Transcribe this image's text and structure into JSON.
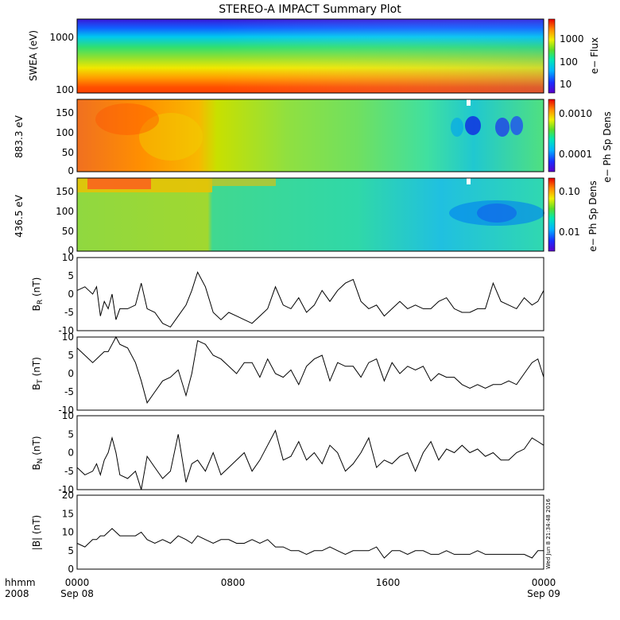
{
  "title": "STEREO-A IMPACT Summary Plot",
  "stamp": "Wed Jun  8 21:34:48 2016",
  "time_axis": {
    "row1_labels": [
      "hhmm",
      "0000",
      "0800",
      "1600",
      "0000"
    ],
    "row2_labels": [
      "2008",
      "Sep 08",
      "",
      "",
      "Sep 09"
    ]
  },
  "chart_data": [
    {
      "type": "heatmap",
      "ylabel": "SWEA (eV)",
      "yscale": "log",
      "ylim": [
        100,
        2000
      ],
      "yticks": [
        "1000",
        "100"
      ],
      "colorbar": {
        "label": "e− Flux",
        "scale": "log",
        "ticks": [
          "1000",
          "100",
          "10"
        ]
      }
    },
    {
      "type": "heatmap",
      "ylabel": "883.3 eV",
      "ylim": [
        0,
        180
      ],
      "yticks": [
        "150",
        "100",
        "50",
        "0"
      ],
      "colorbar": {
        "label": "e− Ph Sp Dens",
        "scale": "log",
        "ticks": [
          "0.0010",
          "0.0001"
        ]
      }
    },
    {
      "type": "heatmap",
      "ylabel": "436.5 eV",
      "ylim": [
        0,
        180
      ],
      "yticks": [
        "150",
        "100",
        "50",
        "0"
      ],
      "colorbar": {
        "label": "e− Ph Sp Dens",
        "scale": "log",
        "ticks": [
          "0.10",
          "0.01"
        ]
      }
    },
    {
      "type": "line",
      "ylabel": "B_R (nT)",
      "ylim": [
        -10,
        10
      ],
      "yticks": [
        "10",
        "5",
        "0",
        "-5",
        "-10"
      ],
      "xlim": [
        0,
        24
      ],
      "x": [
        0,
        0.4,
        0.8,
        1.0,
        1.2,
        1.4,
        1.6,
        1.8,
        2.0,
        2.2,
        2.6,
        3.0,
        3.3,
        3.6,
        4.0,
        4.4,
        4.8,
        5.2,
        5.6,
        5.9,
        6.2,
        6.6,
        7.0,
        7.4,
        7.8,
        8.2,
        8.6,
        9.0,
        9.4,
        9.8,
        10.2,
        10.6,
        11.0,
        11.4,
        11.8,
        12.2,
        12.6,
        13.0,
        13.4,
        13.8,
        14.2,
        14.6,
        15.0,
        15.4,
        15.8,
        16.2,
        16.6,
        17.0,
        17.4,
        17.8,
        18.2,
        18.6,
        19.0,
        19.4,
        19.8,
        20.2,
        20.6,
        21.0,
        21.4,
        21.8,
        22.2,
        22.6,
        23.0,
        23.4,
        23.7,
        24.0
      ],
      "y": [
        1,
        2,
        0,
        2,
        -6,
        -2,
        -4,
        0,
        -7,
        -4,
        -4,
        -3,
        3,
        -4,
        -5,
        -8,
        -9,
        -6,
        -3,
        1,
        6,
        2,
        -5,
        -7,
        -5,
        -6,
        -7,
        -8,
        -6,
        -4,
        2,
        -3,
        -4,
        -1,
        -5,
        -3,
        1,
        -2,
        1,
        3,
        4,
        -2,
        -4,
        -3,
        -6,
        -4,
        -2,
        -4,
        -3,
        -4,
        -4,
        -2,
        -1,
        -4,
        -5,
        -5,
        -4,
        -4,
        3,
        -2,
        -3,
        -4,
        -1,
        -3,
        -2,
        1
      ]
    },
    {
      "type": "line",
      "ylabel": "B_T (nT)",
      "ylim": [
        -10,
        10
      ],
      "yticks": [
        "10",
        "5",
        "0",
        "-5",
        "-10"
      ],
      "xlim": [
        0,
        24
      ],
      "x": [
        0,
        0.4,
        0.8,
        1.0,
        1.2,
        1.4,
        1.6,
        1.8,
        2.0,
        2.2,
        2.6,
        3.0,
        3.3,
        3.6,
        4.0,
        4.4,
        4.8,
        5.2,
        5.6,
        5.9,
        6.2,
        6.6,
        7.0,
        7.4,
        7.8,
        8.2,
        8.6,
        9.0,
        9.4,
        9.8,
        10.2,
        10.6,
        11.0,
        11.4,
        11.8,
        12.2,
        12.6,
        13.0,
        13.4,
        13.8,
        14.2,
        14.6,
        15.0,
        15.4,
        15.8,
        16.2,
        16.6,
        17.0,
        17.4,
        17.8,
        18.2,
        18.6,
        19.0,
        19.4,
        19.8,
        20.2,
        20.6,
        21.0,
        21.4,
        21.8,
        22.2,
        22.6,
        23.0,
        23.4,
        23.7,
        24.0
      ],
      "y": [
        7,
        5,
        3,
        4,
        5,
        6,
        6,
        8,
        10,
        8,
        7,
        3,
        -2,
        -8,
        -5,
        -2,
        -1,
        1,
        -6,
        0,
        9,
        8,
        5,
        4,
        2,
        0,
        3,
        3,
        -1,
        4,
        0,
        -1,
        1,
        -3,
        2,
        4,
        5,
        -2,
        3,
        2,
        2,
        -1,
        3,
        4,
        -2,
        3,
        0,
        2,
        1,
        2,
        -2,
        0,
        -1,
        -1,
        -3,
        -4,
        -3,
        -4,
        -3,
        -3,
        -2,
        -3,
        0,
        3,
        4,
        -1
      ]
    },
    {
      "type": "line",
      "ylabel": "B_N (nT)",
      "ylim": [
        -10,
        10
      ],
      "yticks": [
        "10",
        "5",
        "0",
        "-5",
        "-10"
      ],
      "xlim": [
        0,
        24
      ],
      "x": [
        0,
        0.4,
        0.8,
        1.0,
        1.2,
        1.4,
        1.6,
        1.8,
        2.0,
        2.2,
        2.6,
        3.0,
        3.3,
        3.6,
        4.0,
        4.4,
        4.8,
        5.2,
        5.6,
        5.9,
        6.2,
        6.6,
        7.0,
        7.4,
        7.8,
        8.2,
        8.6,
        9.0,
        9.4,
        9.8,
        10.2,
        10.6,
        11.0,
        11.4,
        11.8,
        12.2,
        12.6,
        13.0,
        13.4,
        13.8,
        14.2,
        14.6,
        15.0,
        15.4,
        15.8,
        16.2,
        16.6,
        17.0,
        17.4,
        17.8,
        18.2,
        18.6,
        19.0,
        19.4,
        19.8,
        20.2,
        20.6,
        21.0,
        21.4,
        21.8,
        22.2,
        22.6,
        23.0,
        23.4,
        23.7,
        24.0
      ],
      "y": [
        -4,
        -6,
        -5,
        -3,
        -6,
        -2,
        0,
        4,
        0,
        -6,
        -7,
        -5,
        -10,
        -1,
        -4,
        -7,
        -5,
        5,
        -8,
        -3,
        -2,
        -5,
        0,
        -6,
        -4,
        -2,
        0,
        -5,
        -2,
        2,
        6,
        -2,
        -1,
        3,
        -2,
        0,
        -3,
        2,
        0,
        -5,
        -3,
        0,
        4,
        -4,
        -2,
        -3,
        -1,
        0,
        -5,
        0,
        3,
        -2,
        1,
        0,
        2,
        0,
        1,
        -1,
        0,
        -2,
        -2,
        0,
        1,
        4,
        3,
        2
      ]
    },
    {
      "type": "line",
      "ylabel": "|B| (nT)",
      "ylim": [
        0,
        20
      ],
      "yticks": [
        "20",
        "15",
        "10",
        "5",
        "0"
      ],
      "xlim": [
        0,
        24
      ],
      "x": [
        0,
        0.4,
        0.8,
        1.0,
        1.2,
        1.4,
        1.6,
        1.8,
        2.0,
        2.2,
        2.6,
        3.0,
        3.3,
        3.6,
        4.0,
        4.4,
        4.8,
        5.2,
        5.6,
        5.9,
        6.2,
        6.6,
        7.0,
        7.4,
        7.8,
        8.2,
        8.6,
        9.0,
        9.4,
        9.8,
        10.2,
        10.6,
        11.0,
        11.4,
        11.8,
        12.2,
        12.6,
        13.0,
        13.4,
        13.8,
        14.2,
        14.6,
        15.0,
        15.4,
        15.8,
        16.2,
        16.6,
        17.0,
        17.4,
        17.8,
        18.2,
        18.6,
        19.0,
        19.4,
        19.8,
        20.2,
        20.6,
        21.0,
        21.4,
        21.8,
        22.2,
        22.6,
        23.0,
        23.4,
        23.7,
        24.0
      ],
      "y": [
        7,
        6,
        8,
        8,
        9,
        9,
        10,
        11,
        10,
        9,
        9,
        9,
        10,
        8,
        7,
        8,
        7,
        9,
        8,
        7,
        9,
        8,
        7,
        8,
        8,
        7,
        7,
        8,
        7,
        8,
        6,
        6,
        5,
        5,
        4,
        5,
        5,
        6,
        5,
        4,
        5,
        5,
        5,
        6,
        3,
        5,
        5,
        4,
        5,
        5,
        4,
        4,
        5,
        4,
        4,
        4,
        5,
        4,
        4,
        4,
        4,
        4,
        4,
        3,
        5,
        5
      ]
    }
  ]
}
